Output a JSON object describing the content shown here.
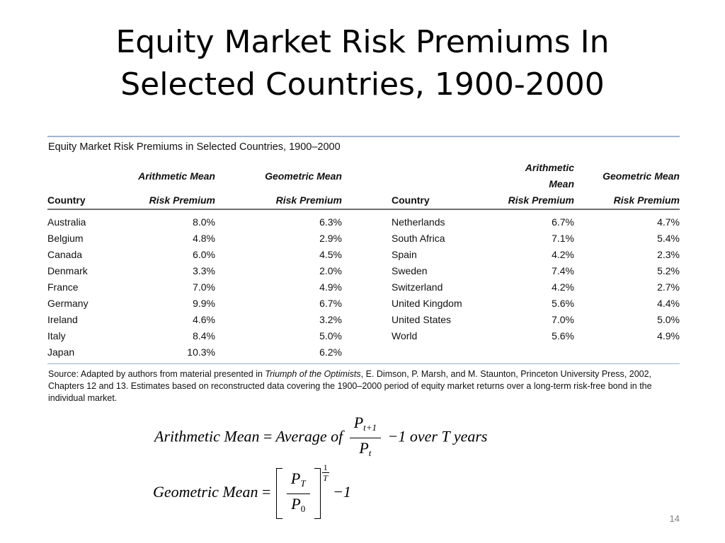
{
  "slide": {
    "title_line1": "Equity Market Risk Premiums In",
    "title_line2": "Selected Countries, 1900-2000",
    "page_number": "14"
  },
  "table": {
    "caption": "Equity Market Risk Premiums in Selected Countries, 1900–2000",
    "headers": {
      "country": "Country",
      "arith_line1": "Arithmetic Mean",
      "arith_line2": "Risk Premium",
      "geo_line1": "Geometric Mean",
      "geo_line2": "Risk Premium"
    },
    "rows": [
      {
        "c1": "Australia",
        "a1": "8.0%",
        "g1": "6.3%",
        "c2": "Netherlands",
        "a2": "6.7%",
        "g2": "4.7%"
      },
      {
        "c1": "Belgium",
        "a1": "4.8%",
        "g1": "2.9%",
        "c2": "South Africa",
        "a2": "7.1%",
        "g2": "5.4%"
      },
      {
        "c1": "Canada",
        "a1": "6.0%",
        "g1": "4.5%",
        "c2": "Spain",
        "a2": "4.2%",
        "g2": "2.3%"
      },
      {
        "c1": "Denmark",
        "a1": "3.3%",
        "g1": "2.0%",
        "c2": "Sweden",
        "a2": "7.4%",
        "g2": "5.2%"
      },
      {
        "c1": "France",
        "a1": "7.0%",
        "g1": "4.9%",
        "c2": "Switzerland",
        "a2": "4.2%",
        "g2": "2.7%"
      },
      {
        "c1": "Germany",
        "a1": "9.9%",
        "g1": "6.7%",
        "c2": "United Kingdom",
        "a2": "5.6%",
        "g2": "4.4%"
      },
      {
        "c1": "Ireland",
        "a1": "4.6%",
        "g1": "3.2%",
        "c2": "United States",
        "a2": "7.0%",
        "g2": "5.0%"
      },
      {
        "c1": "Italy",
        "a1": "8.4%",
        "g1": "5.0%",
        "c2": "World",
        "a2": "5.6%",
        "g2": "4.9%"
      },
      {
        "c1": "Japan",
        "a1": "10.3%",
        "g1": "6.2%",
        "c2": "",
        "a2": "",
        "g2": ""
      }
    ],
    "source": {
      "prefix": "Source: Adapted by authors from material presented in ",
      "book_title": "Triumph of the Optimists",
      "suffix": ", E. Dimson, P. Marsh, and M. Staunton, Princeton University Press, 2002, Chapters 12 and 13. Estimates based on reconstructed data covering the 1900–2000 period of equity market returns over a long-term risk-free bond in the individual market."
    }
  },
  "formulas": {
    "arithmetic": {
      "lhs": "Arithmetic Mean",
      "equals": "=",
      "mid": "Average of",
      "num_base": "P",
      "num_sub": "t+1",
      "den_base": "P",
      "den_sub": "t",
      "tail": "−1 over T  years"
    },
    "geometric": {
      "lhs": "Geometric Mean",
      "equals": "=",
      "num_base": "P",
      "num_sub": "T",
      "den_base": "P",
      "den_sub": "0",
      "exp_num": "1",
      "exp_den": "T",
      "tail": "−1"
    }
  }
}
